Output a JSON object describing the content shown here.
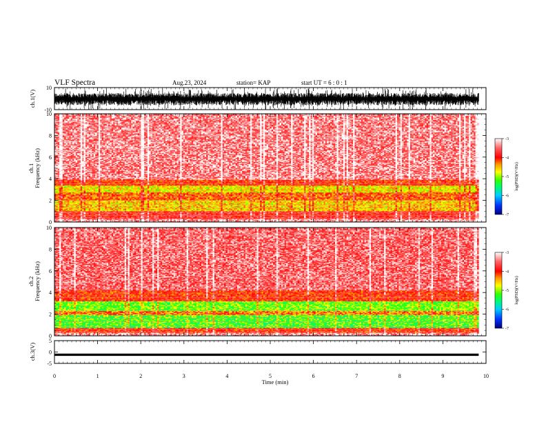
{
  "header": {
    "title": "VLF Spectra",
    "date": "Aug.23, 2024",
    "station": "station= KAP",
    "start_ut": "start  UT  =   6  : 0  : 1"
  },
  "colors": {
    "waveform": "#000000",
    "background": "#ffffff",
    "spectrogram_background": "#ffffff",
    "colormap": [
      "#000080",
      "#0033ff",
      "#00ccff",
      "#00ff66",
      "#33ff00",
      "#ffff00",
      "#ff9900",
      "#ff0000",
      "#ff6666",
      "#ffffff"
    ]
  },
  "chart_data": [
    {
      "type": "line",
      "panel": "ch1-waveform",
      "ylabel": "ch.1(V)",
      "ylim": [
        -10,
        10
      ],
      "yticks": [
        {
          "v": 10,
          "label": "10"
        },
        {
          "v": -10,
          "label": "-10"
        }
      ],
      "xlim": [
        0,
        10
      ],
      "data_end_min": 9.83,
      "description_values": {
        "typical_range_v": [
          -6,
          5
        ],
        "peak_range_v": [
          -10,
          9.5
        ]
      }
    },
    {
      "type": "heatmap",
      "panel": "ch1-spectrogram",
      "ylabel_line1": "ch.1",
      "ylabel_line2": "Frequency (kHz)",
      "ylim": [
        0,
        10
      ],
      "yticks": [
        "0",
        "2",
        "4",
        "6",
        "8",
        "10"
      ],
      "xlim": [
        0,
        10
      ],
      "data_end_min": 9.83,
      "colorbar": {
        "range": [
          -7,
          -3
        ],
        "ticks": [
          "-3",
          "-4",
          "-5",
          "-6",
          "-7"
        ],
        "label": "log(PSD)(V²/Hz)"
      },
      "bands_khz": [
        {
          "from": 0.0,
          "to": 0.3,
          "level": -3.3
        },
        {
          "from": 0.3,
          "to": 1.0,
          "level": -3.8
        },
        {
          "from": 1.0,
          "to": 2.0,
          "level": -4.6
        },
        {
          "from": 2.0,
          "to": 2.7,
          "level": -4.2
        },
        {
          "from": 2.7,
          "to": 3.4,
          "level": -4.7
        },
        {
          "from": 3.4,
          "to": 3.9,
          "level": -4.0
        },
        {
          "from": 3.9,
          "to": 10.0,
          "level": -3.4
        }
      ]
    },
    {
      "type": "heatmap",
      "panel": "ch2-spectrogram",
      "ylabel_line1": "ch.2",
      "ylabel_line2": "Frequency (kHz)",
      "ylim": [
        0,
        10
      ],
      "yticks": [
        "0",
        "2",
        "4",
        "6",
        "8",
        "10"
      ],
      "xlim": [
        0,
        10
      ],
      "data_end_min": 9.83,
      "colorbar": {
        "range": [
          -7,
          -3
        ],
        "ticks": [
          "-3",
          "-4",
          "-5",
          "-6",
          "-7"
        ],
        "label": "log(PSD)(V²/Hz)"
      },
      "bands_khz": [
        {
          "from": 0.0,
          "to": 0.3,
          "level": -3.3
        },
        {
          "from": 0.3,
          "to": 0.7,
          "level": -4.0
        },
        {
          "from": 0.7,
          "to": 1.9,
          "level": -5.2
        },
        {
          "from": 1.9,
          "to": 2.3,
          "level": -4.3
        },
        {
          "from": 2.3,
          "to": 3.2,
          "level": -5.1
        },
        {
          "from": 3.2,
          "to": 4.2,
          "level": -4.0
        },
        {
          "from": 4.2,
          "to": 10.0,
          "level": -3.5
        }
      ]
    },
    {
      "type": "line",
      "panel": "ch3-waveform",
      "ylabel": "ch.3(V)",
      "ylim": [
        -5,
        5
      ],
      "yticks": [
        {
          "v": 5,
          "label": "5"
        },
        {
          "v": 0,
          "label": "0"
        },
        {
          "v": -5,
          "label": "-5"
        }
      ],
      "xlim": [
        0,
        10
      ],
      "data_end_min": 9.83,
      "description_values": {
        "center_v": -1.2,
        "half_width_v": 0.5
      }
    }
  ],
  "xaxis": {
    "label": "Time  (min)",
    "ticks": [
      "0",
      "1",
      "2",
      "3",
      "4",
      "5",
      "6",
      "7",
      "8",
      "9",
      "10"
    ],
    "range": [
      0,
      10
    ]
  }
}
